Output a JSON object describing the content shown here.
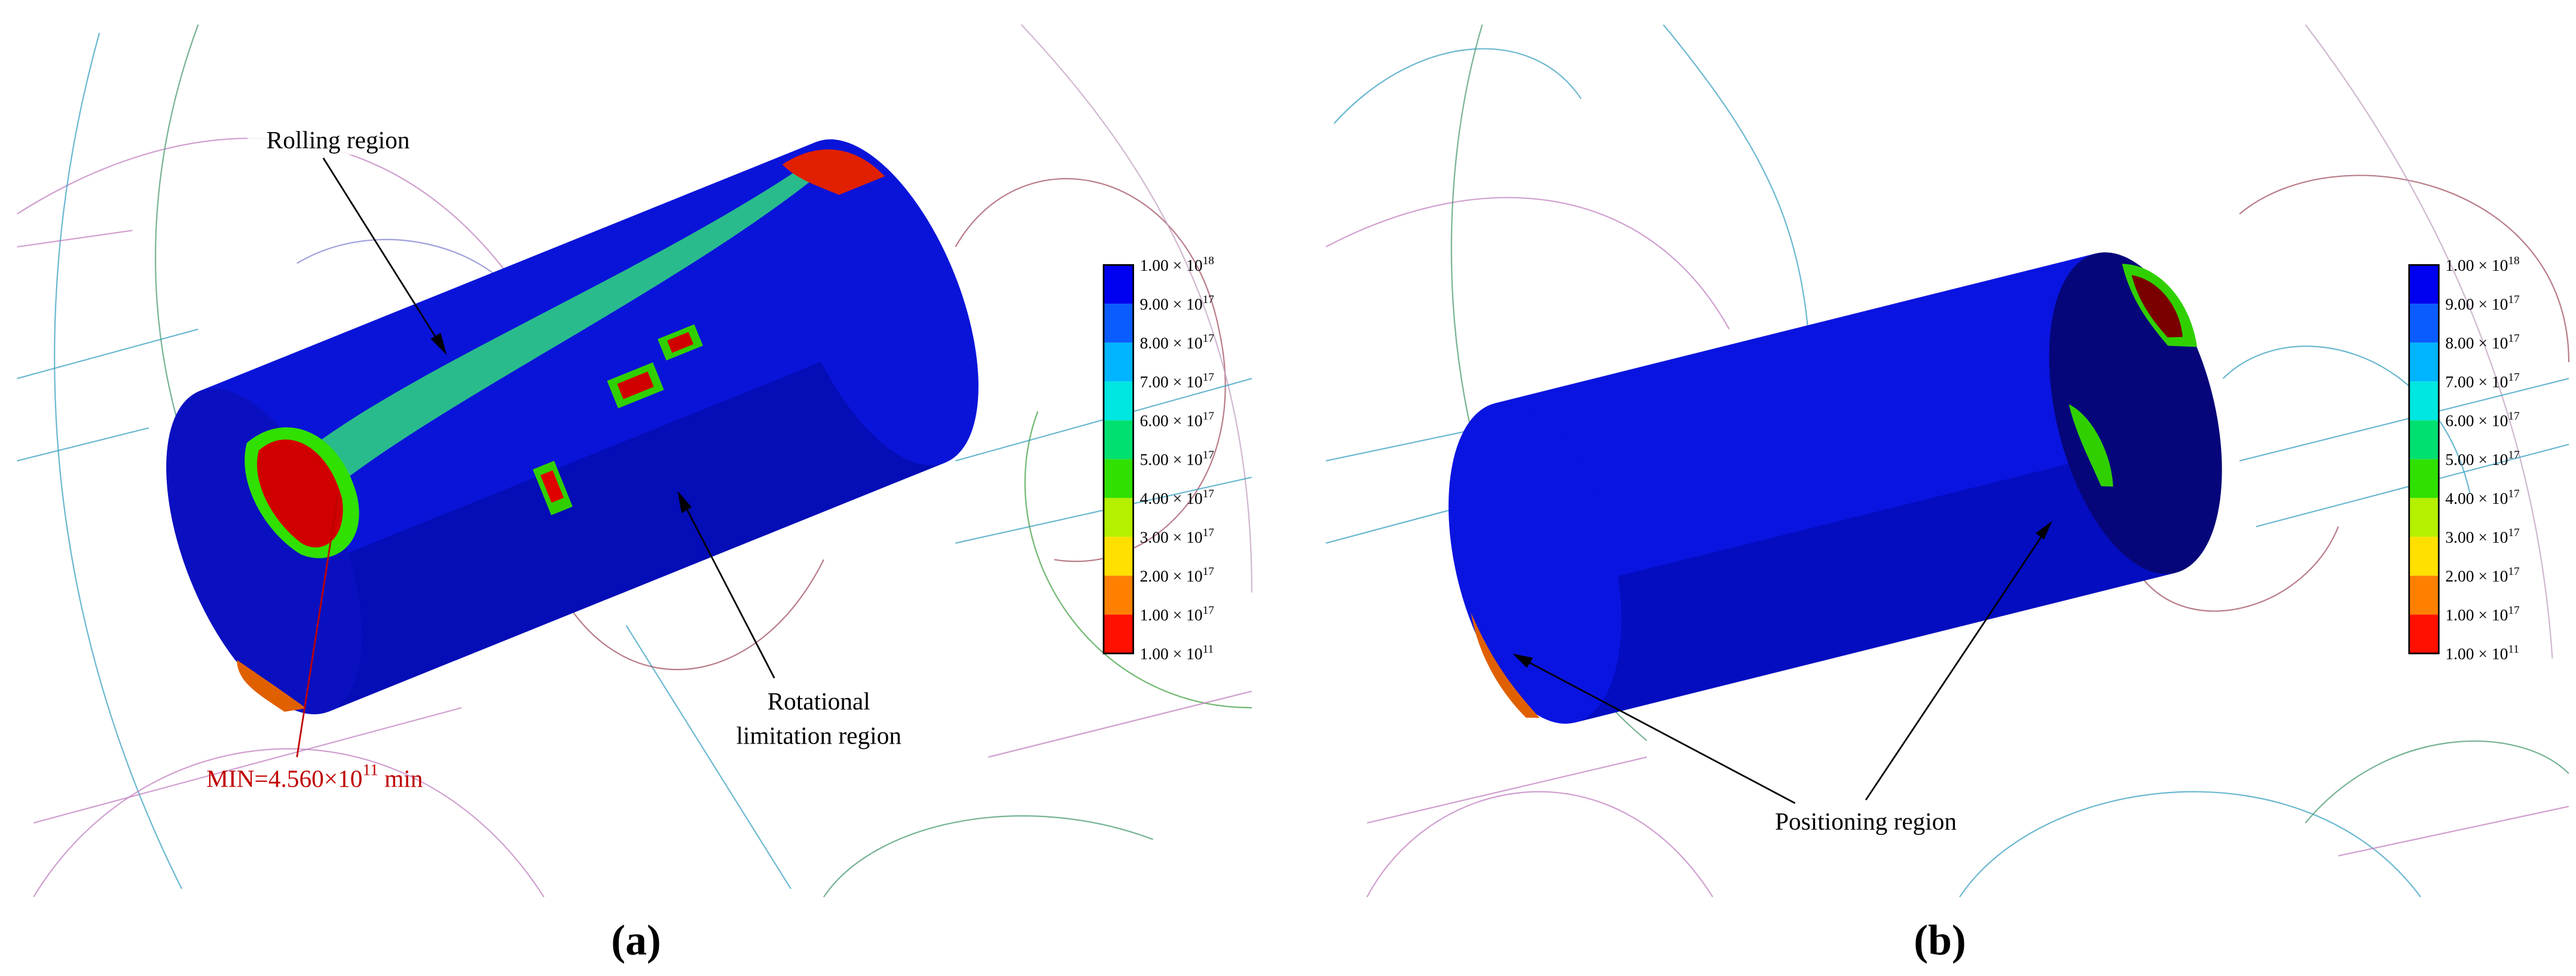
{
  "panels": [
    {
      "label": "(a)",
      "annotations": [
        {
          "lines": [
            "Rolling region"
          ]
        },
        {
          "lines": [
            "Rotational",
            "limitation region"
          ]
        },
        {
          "lines": [
            {
              "base": "MIN=4.560×10",
              "exponent": "11",
              "suffix": " min"
            }
          ]
        }
      ]
    },
    {
      "label": "(b)",
      "annotations": [
        {
          "lines": [
            "Positioning region"
          ]
        }
      ]
    }
  ],
  "legend": {
    "entries": [
      {
        "base": "1.00 × 10",
        "exponent": "18"
      },
      {
        "base": "9.00 × 10",
        "exponent": "17"
      },
      {
        "base": "8.00 × 10",
        "exponent": "17"
      },
      {
        "base": "7.00 × 10",
        "exponent": "17"
      },
      {
        "base": "6.00 × 10",
        "exponent": "17"
      },
      {
        "base": "5.00 × 10",
        "exponent": "17"
      },
      {
        "base": "4.00 × 10",
        "exponent": "17"
      },
      {
        "base": "3.00 × 10",
        "exponent": "17"
      },
      {
        "base": "2.00 × 10",
        "exponent": "17"
      },
      {
        "base": "1.00 × 10",
        "exponent": "17"
      },
      {
        "base": "1.00 × 10",
        "exponent": "11"
      }
    ],
    "colors": [
      "#0000f0",
      "#0a5cff",
      "#00b4ff",
      "#00e6e0",
      "#00e070",
      "#30e000",
      "#b4f000",
      "#ffe000",
      "#ff8000",
      "#ff1000"
    ]
  }
}
